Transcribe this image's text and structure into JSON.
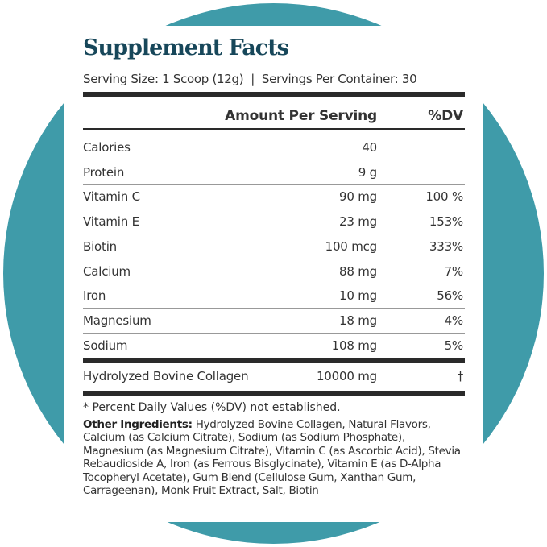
{
  "colors": {
    "circle": "#3f9ba9",
    "title": "#17475a"
  },
  "title": "Supplement Facts",
  "serving_line": "Serving Size: 1 Scoop (12g)  |  Servings Per Container: 30",
  "header": {
    "amount": "Amount Per Serving",
    "dv": "%DV"
  },
  "rows": [
    {
      "name": "Calories",
      "amount": "40",
      "dv": ""
    },
    {
      "name": "Protein",
      "amount": "9 g",
      "dv": ""
    },
    {
      "name": "Vitamin C",
      "amount": "90 mg",
      "dv": "100 %"
    },
    {
      "name": "Vitamin E",
      "amount": "23 mg",
      "dv": "153%"
    },
    {
      "name": "Biotin",
      "amount": "100 mcg",
      "dv": "333%"
    },
    {
      "name": "Calcium",
      "amount": "88 mg",
      "dv": "7%"
    },
    {
      "name": "Iron",
      "amount": "10 mg",
      "dv": "56%"
    },
    {
      "name": "Magnesium",
      "amount": "18 mg",
      "dv": "4%"
    },
    {
      "name": "Sodium",
      "amount": "108 mg",
      "dv": "5%"
    }
  ],
  "collagen": {
    "name": "Hydrolyzed Bovine Collagen",
    "amount": "10000 mg",
    "dv": "†"
  },
  "footnote": "* Percent Daily Values (%DV) not established.",
  "ingredients": {
    "label": "Other Ingredients:",
    "text": " Hydrolyzed Bovine Collagen, Natural Flavors, Calcium (as Calcium Citrate), Sodium (as Sodium Phosphate), Magnesium (as Magnesium Citrate), Vitamin C (as Ascorbic Acid), Stevia Rebaudioside A, Iron (as Ferrous Bisglycinate), Vitamin E (as D-Alpha Tocopheryl Acetate), Gum Blend (Cellulose Gum, Xanthan Gum, Carrageenan), Monk Fruit Extract, Salt, Biotin"
  }
}
